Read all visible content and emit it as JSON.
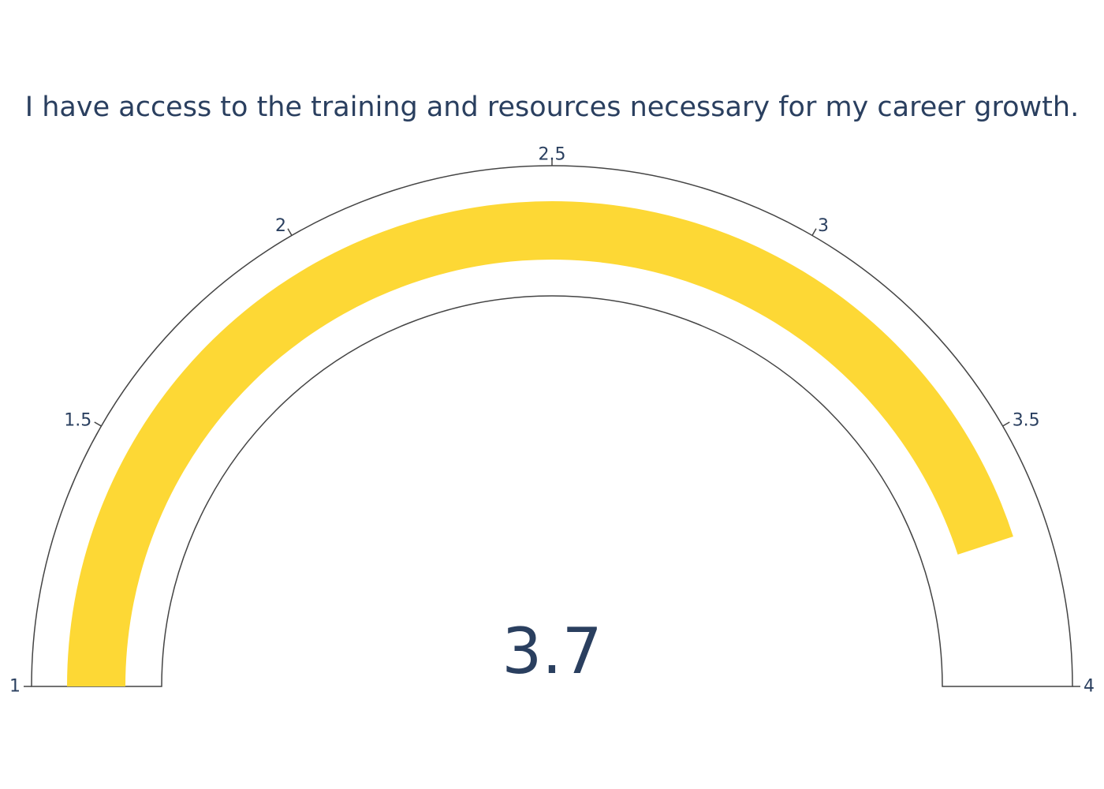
{
  "chart_data": {
    "type": "gauge",
    "title": "I have access to the training and resources necessary for my career growth.",
    "value": 3.7,
    "value_label": "3.7",
    "range": [
      1,
      4
    ],
    "ticks": [
      1,
      1.5,
      2,
      2.5,
      3,
      3.5,
      4
    ],
    "tick_labels": [
      "1",
      "1.5",
      "2",
      "2.5",
      "3",
      "3.5",
      "4"
    ],
    "bar_color": "#fdd835",
    "outline_color": "#444444",
    "text_color": "#2a3f5f"
  }
}
